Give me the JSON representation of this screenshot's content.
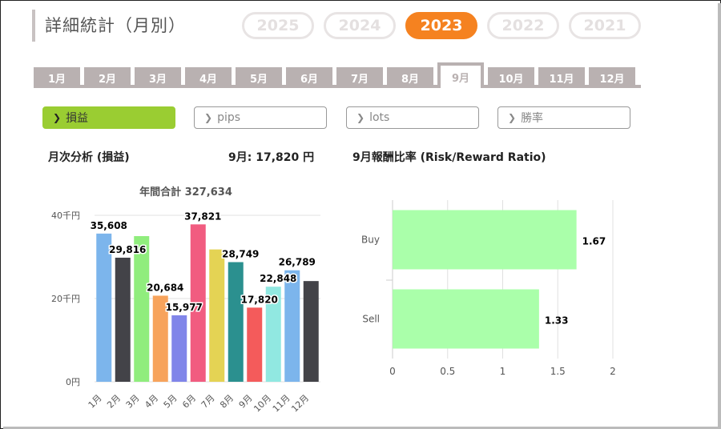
{
  "header": {
    "title": "詳細統計（月別）"
  },
  "years": [
    {
      "label": "2025",
      "active": false
    },
    {
      "label": "2024",
      "active": false
    },
    {
      "label": "2023",
      "active": true
    },
    {
      "label": "2022",
      "active": false
    },
    {
      "label": "2021",
      "active": false
    }
  ],
  "months": [
    {
      "label": "1月",
      "active": false
    },
    {
      "label": "2月",
      "active": false
    },
    {
      "label": "3月",
      "active": false
    },
    {
      "label": "4月",
      "active": false
    },
    {
      "label": "5月",
      "active": false
    },
    {
      "label": "6月",
      "active": false
    },
    {
      "label": "7月",
      "active": false
    },
    {
      "label": "8月",
      "active": false
    },
    {
      "label": "9月",
      "active": true
    },
    {
      "label": "10月",
      "active": false
    },
    {
      "label": "11月",
      "active": false
    },
    {
      "label": "12月",
      "active": false
    }
  ],
  "metrics": [
    {
      "label": "損益",
      "active": true
    },
    {
      "label": "pips",
      "active": false
    },
    {
      "label": "lots",
      "active": false
    },
    {
      "label": "勝率",
      "active": false
    }
  ],
  "summary": {
    "left_title": "月次分析 (損益)",
    "month_value": "9月:  17,820 円",
    "right_title": "9月報酬比率 (Risk/Reward Ratio)"
  },
  "chart_data": [
    {
      "type": "bar",
      "title": "年間合計 327,634",
      "categories": [
        "1月",
        "2月",
        "3月",
        "4月",
        "5月",
        "6月",
        "7月",
        "8月",
        "9月",
        "10月",
        "11月",
        "12月"
      ],
      "values": [
        35608,
        29816,
        35000,
        20684,
        15977,
        37821,
        31800,
        28749,
        17820,
        22848,
        26789,
        24200
      ],
      "data_labels": [
        "35,608",
        "29,816",
        "",
        "20,684",
        "15,977",
        "37,821",
        "",
        "28,749",
        "17,820",
        "22,848",
        "26,789",
        ""
      ],
      "colors": [
        "#7cb5ec",
        "#434348",
        "#90ed7d",
        "#f7a35c",
        "#8085e9",
        "#f15c80",
        "#e4d354",
        "#2b908f",
        "#f45b5b",
        "#91e8e1",
        "#7cb5ec",
        "#434348"
      ],
      "ylim": [
        0,
        40000
      ],
      "yticks": [
        {
          "value": 0,
          "label": "0円"
        },
        {
          "value": 20000,
          "label": "20千円"
        },
        {
          "value": 40000,
          "label": "40千円"
        }
      ],
      "grid": true
    },
    {
      "type": "bar",
      "orientation": "horizontal",
      "categories": [
        "Buy",
        "Sell"
      ],
      "values": [
        1.67,
        1.33
      ],
      "data_labels": [
        "1.67",
        "1.33"
      ],
      "color": "#aaffaa",
      "xlim": [
        0,
        2
      ],
      "xticks": [
        "0",
        "0.5",
        "1",
        "1.5",
        "2"
      ],
      "grid": true
    }
  ]
}
